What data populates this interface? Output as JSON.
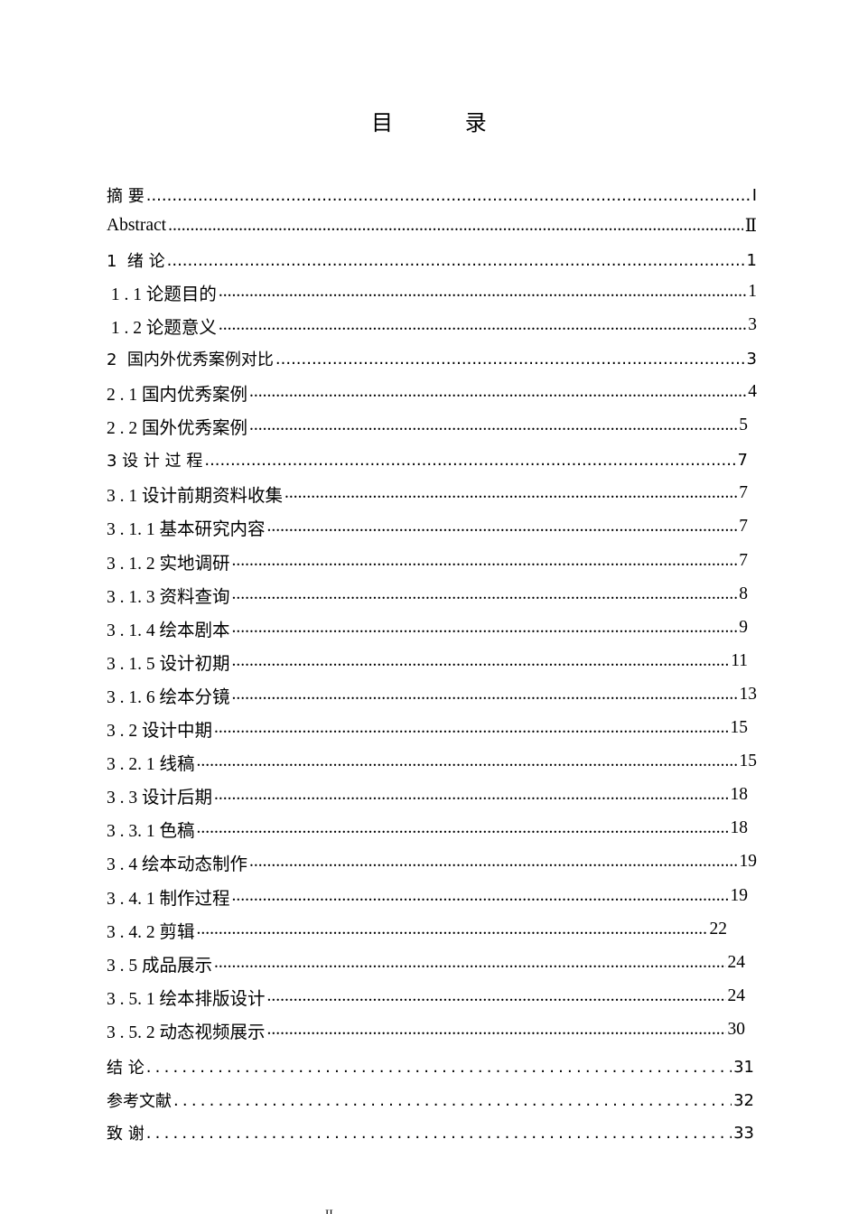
{
  "title": "目 录",
  "entries": [
    {
      "label": "摘 要",
      "page": "Ⅰ"
    },
    {
      "label": "Abstract",
      "page": "Ⅱ"
    },
    {
      "label": "1  绪 论",
      "page": "1"
    },
    {
      "label": " 1 . 1 论题目的",
      "page": "1"
    },
    {
      "label": " 1 . 2 论题意义",
      "page": "3"
    },
    {
      "label": "2  国内外优秀案例对比",
      "page": "3"
    },
    {
      "label": "2 . 1 国内优秀案例",
      "page": "4"
    },
    {
      "label": "2 . 2 国外优秀案例",
      "page": "5"
    },
    {
      "label": "3 设 计 过 程",
      "page": "7"
    },
    {
      "label": "3 . 1 设计前期资料收集",
      "page": "7"
    },
    {
      "label": "3 . 1. 1 基本研究内容",
      "page": "7"
    },
    {
      "label": "3 . 1. 2 实地调研",
      "page": "7"
    },
    {
      "label": "3 . 1. 3 资料查询",
      "page": "8"
    },
    {
      "label": "3 . 1. 4 绘本剧本",
      "page": "9"
    },
    {
      "label": "3 . 1. 5 设计初期",
      "page": "11"
    },
    {
      "label": "3 . 1. 6 绘本分镜",
      "page": "13"
    },
    {
      "label": "3 . 2 设计中期",
      "page": "15"
    },
    {
      "label": "3 . 2. 1 线稿",
      "page": "15"
    },
    {
      "label": "3 . 3 设计后期",
      "page": "18"
    },
    {
      "label": "3 . 3. 1 色稿",
      "page": "18"
    },
    {
      "label": "3 . 4 绘本动态制作",
      "page": "19"
    },
    {
      "label": "3 . 4. 1 制作过程",
      "page": "19"
    },
    {
      "label": "3 . 4. 2 剪辑",
      "page": "22"
    },
    {
      "label": "3 . 5 成品展示",
      "page": "24"
    },
    {
      "label": "3 . 5. 1 绘本排版设计",
      "page": "24"
    },
    {
      "label": "3 . 5. 2 动态视频展示",
      "page": "30"
    },
    {
      "label": "结 论",
      "page": "31"
    },
    {
      "label": "参考文献",
      "page": "32"
    },
    {
      "label": "致 谢",
      "page": "33"
    }
  ],
  "footer_page": "II"
}
